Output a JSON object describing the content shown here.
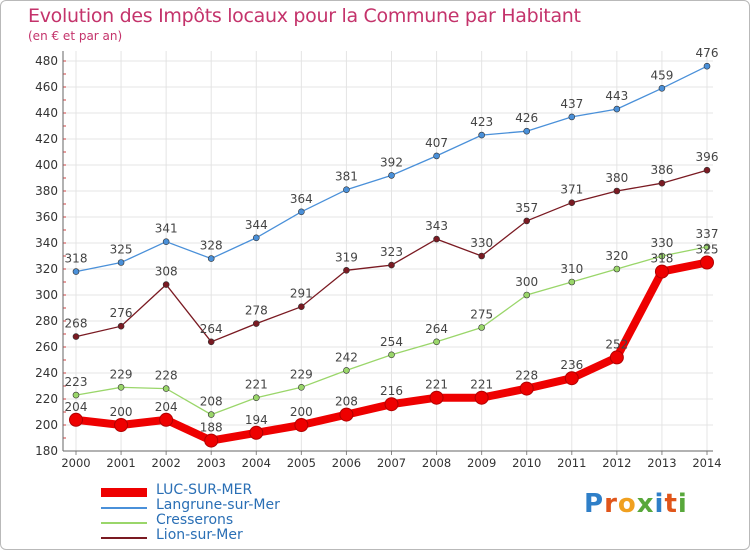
{
  "header": {
    "title": "Evolution des Impôts locaux pour la Commune par Habitant",
    "subtitle": "(en € et par an)"
  },
  "brand": {
    "letters": [
      {
        "ch": "P",
        "color": "#2f7fc8"
      },
      {
        "ch": "r",
        "color": "#e0551a"
      },
      {
        "ch": "o",
        "color": "#f0a020"
      },
      {
        "ch": "x",
        "color": "#58a83b"
      },
      {
        "ch": "i",
        "color": "#2f7fc8"
      },
      {
        "ch": "t",
        "color": "#e0551a"
      },
      {
        "ch": "i",
        "color": "#58a83b"
      }
    ]
  },
  "chart_data": {
    "type": "line",
    "title": "Evolution des Impôts locaux pour la Commune par Habitant",
    "subtitle": "(en € et par an)",
    "xlabel": "",
    "ylabel": "",
    "ylim": [
      180,
      480
    ],
    "yticks": [
      180,
      200,
      220,
      240,
      260,
      280,
      300,
      320,
      340,
      360,
      380,
      400,
      420,
      440,
      460,
      480
    ],
    "grid": true,
    "legend_position": "bottom-left",
    "categories": [
      "2000",
      "2001",
      "2002",
      "2003",
      "2004",
      "2005",
      "2006",
      "2007",
      "2008",
      "2009",
      "2010",
      "2011",
      "2012",
      "2013",
      "2014"
    ],
    "series": [
      {
        "name": "LUC-SUR-MER",
        "color": "#ee0000",
        "emphasis": true,
        "values": [
          204,
          200,
          204,
          188,
          194,
          200,
          208,
          216,
          221,
          221,
          228,
          236,
          252,
          318,
          325
        ]
      },
      {
        "name": "Langrune-sur-Mer",
        "color": "#4a90d9",
        "values": [
          318,
          325,
          341,
          328,
          344,
          364,
          381,
          392,
          407,
          423,
          426,
          437,
          443,
          459,
          476
        ]
      },
      {
        "name": "Cresserons",
        "color": "#9ad66a",
        "values": [
          223,
          229,
          228,
          208,
          221,
          229,
          242,
          254,
          264,
          275,
          300,
          310,
          320,
          330,
          337
        ]
      },
      {
        "name": "Lion-sur-Mer",
        "color": "#7a1a22",
        "values": [
          268,
          276,
          308,
          264,
          278,
          291,
          319,
          323,
          343,
          330,
          357,
          371,
          380,
          386,
          396
        ]
      }
    ]
  }
}
